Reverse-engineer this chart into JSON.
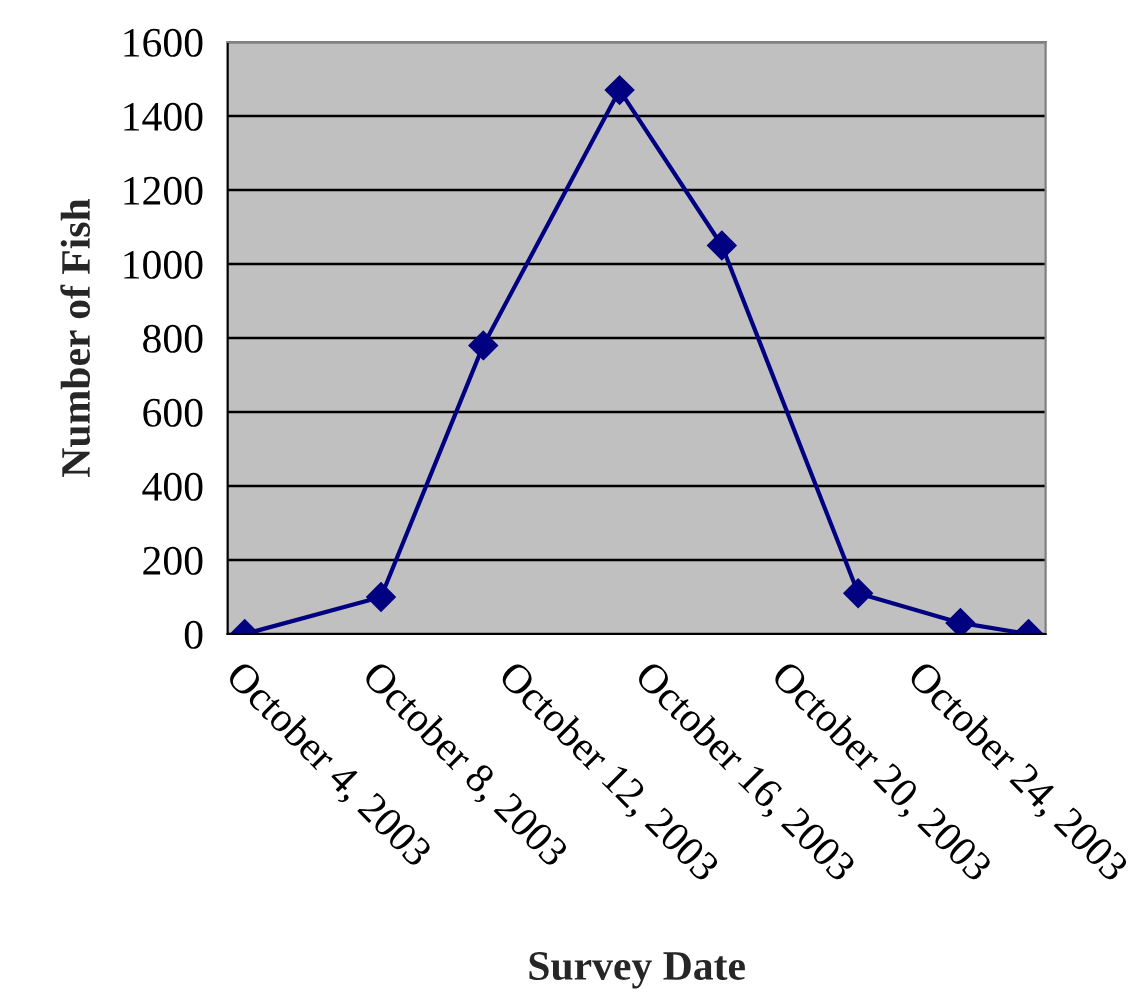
{
  "chart_data": {
    "type": "line",
    "xlabel": "Survey Date",
    "ylabel": "Number of Fish",
    "x": [
      "2003-10-04",
      "2003-10-08",
      "2003-10-11",
      "2003-10-15",
      "2003-10-18",
      "2003-10-22",
      "2003-10-25",
      "2003-10-27"
    ],
    "series": [
      {
        "color": "#000080",
        "values": [
          0,
          100,
          780,
          1470,
          1050,
          110,
          30,
          0
        ]
      }
    ],
    "xlim": [
      "2003-10-03T12:00",
      "2003-10-27T12:00"
    ],
    "xticks": [
      {
        "value": "2003-10-04",
        "label": "October 4, 2003"
      },
      {
        "value": "2003-10-08",
        "label": "October 8, 2003"
      },
      {
        "value": "2003-10-12",
        "label": "October 12, 2003"
      },
      {
        "value": "2003-10-16",
        "label": "October 16, 2003"
      },
      {
        "value": "2003-10-20",
        "label": "October 20, 2003"
      },
      {
        "value": "2003-10-24",
        "label": "October 24, 2003"
      }
    ],
    "ylim": [
      0,
      1600
    ],
    "yticks": [
      0,
      200,
      400,
      600,
      800,
      1000,
      1200,
      1400,
      1600
    ],
    "grid": "y",
    "marker": "diamond",
    "line_style": "solid",
    "legend": false
  }
}
